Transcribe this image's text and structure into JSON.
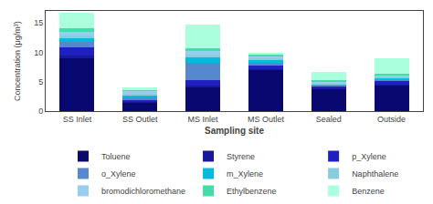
{
  "chart_data": {
    "type": "bar",
    "stacked": true,
    "xlabel": "Sampling site",
    "ylabel": "Concentration (μg/m³)",
    "categories": [
      "SS Inlet",
      "SS Outlet",
      "MS Inlet",
      "MS Outlet",
      "Sealed",
      "Outside"
    ],
    "series": [
      {
        "name": "Toluene",
        "color": "#080870",
        "values": [
          9.0,
          1.5,
          4.0,
          7.0,
          3.8,
          4.4
        ]
      },
      {
        "name": "Styrene",
        "color": "#18189a",
        "values": [
          0.4,
          0.15,
          0.35,
          0.1,
          0.15,
          0.15
        ]
      },
      {
        "name": "p_Xylene",
        "color": "#2020c0",
        "values": [
          1.5,
          0.25,
          1.0,
          0.6,
          0.35,
          0.5
        ]
      },
      {
        "name": "o_Xylene",
        "color": "#5588cc",
        "values": [
          0.8,
          0.4,
          2.8,
          0.5,
          0.15,
          0.35
        ]
      },
      {
        "name": "m_Xylene",
        "color": "#00bbdd",
        "values": [
          0.7,
          0.4,
          1.0,
          0.4,
          0.2,
          0.3
        ]
      },
      {
        "name": "Naphthalene",
        "color": "#88ccdd",
        "values": [
          0.5,
          0.3,
          0.4,
          0.35,
          0.15,
          0.25
        ]
      },
      {
        "name": "bromodichloromethane",
        "color": "#99ccee",
        "values": [
          0.5,
          0.5,
          0.6,
          0.35,
          0.2,
          0.2
        ]
      },
      {
        "name": "Ethylbenzene",
        "color": "#44ddaa",
        "values": [
          0.7,
          0.2,
          0.6,
          0.3,
          0.2,
          0.25
        ]
      },
      {
        "name": "Benzene",
        "color": "#aaffdd",
        "values": [
          2.6,
          0.3,
          3.95,
          0.3,
          1.45,
          2.6
        ]
      }
    ],
    "ylim": [
      0,
      17
    ],
    "yticks": [
      0,
      5,
      10,
      15
    ],
    "grid": false,
    "legend": "bottom"
  }
}
